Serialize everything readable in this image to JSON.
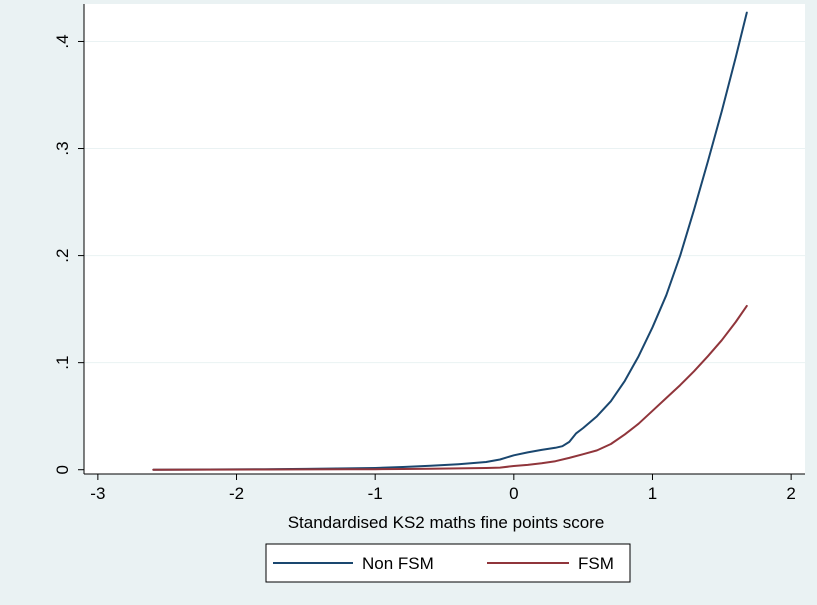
{
  "chart_data": {
    "type": "line",
    "title": "",
    "xlabel": "Standardised KS2 maths fine points score",
    "ylabel": "",
    "xlim": [
      -3.1,
      2.1
    ],
    "ylim": [
      -0.004,
      0.435
    ],
    "xticks": [
      -3,
      -2,
      -1,
      0,
      1,
      2
    ],
    "xtick_labels": [
      "-3",
      "-2",
      "-1",
      "0",
      "1",
      "2"
    ],
    "yticks": [
      0,
      0.1,
      0.2,
      0.3,
      0.4
    ],
    "ytick_labels": [
      "0",
      ".1",
      ".2",
      ".3",
      ".4"
    ],
    "grid": "horizontal",
    "legend_position": "bottom",
    "series": [
      {
        "name": "Non FSM",
        "color": "#1a476f",
        "x": [
          -2.6,
          -2.2,
          -1.8,
          -1.5,
          -1.2,
          -1.0,
          -0.8,
          -0.6,
          -0.4,
          -0.2,
          -0.1,
          0.0,
          0.1,
          0.2,
          0.3,
          0.35,
          0.4,
          0.45,
          0.5,
          0.6,
          0.7,
          0.8,
          0.9,
          1.0,
          1.1,
          1.2,
          1.3,
          1.4,
          1.5,
          1.6,
          1.68
        ],
        "y": [
          0.0,
          0.0002,
          0.0005,
          0.0008,
          0.0012,
          0.0016,
          0.0025,
          0.0037,
          0.0052,
          0.0072,
          0.0095,
          0.0135,
          0.0162,
          0.0185,
          0.0205,
          0.022,
          0.026,
          0.034,
          0.039,
          0.05,
          0.064,
          0.083,
          0.106,
          0.133,
          0.163,
          0.2,
          0.243,
          0.288,
          0.335,
          0.385,
          0.427
        ]
      },
      {
        "name": "FSM",
        "color": "#90353b",
        "x": [
          -2.6,
          -2.2,
          -1.8,
          -1.5,
          -1.2,
          -1.0,
          -0.8,
          -0.6,
          -0.4,
          -0.2,
          -0.1,
          0.0,
          0.1,
          0.2,
          0.3,
          0.4,
          0.5,
          0.6,
          0.7,
          0.8,
          0.9,
          1.0,
          1.1,
          1.2,
          1.3,
          1.4,
          1.5,
          1.6,
          1.68
        ],
        "y": [
          0.0,
          0.0001,
          0.0002,
          0.0003,
          0.0004,
          0.0005,
          0.0007,
          0.0009,
          0.0012,
          0.0016,
          0.002,
          0.0035,
          0.0045,
          0.006,
          0.008,
          0.011,
          0.0145,
          0.018,
          0.024,
          0.033,
          0.043,
          0.055,
          0.067,
          0.079,
          0.092,
          0.106,
          0.121,
          0.138,
          0.153
        ]
      }
    ]
  }
}
